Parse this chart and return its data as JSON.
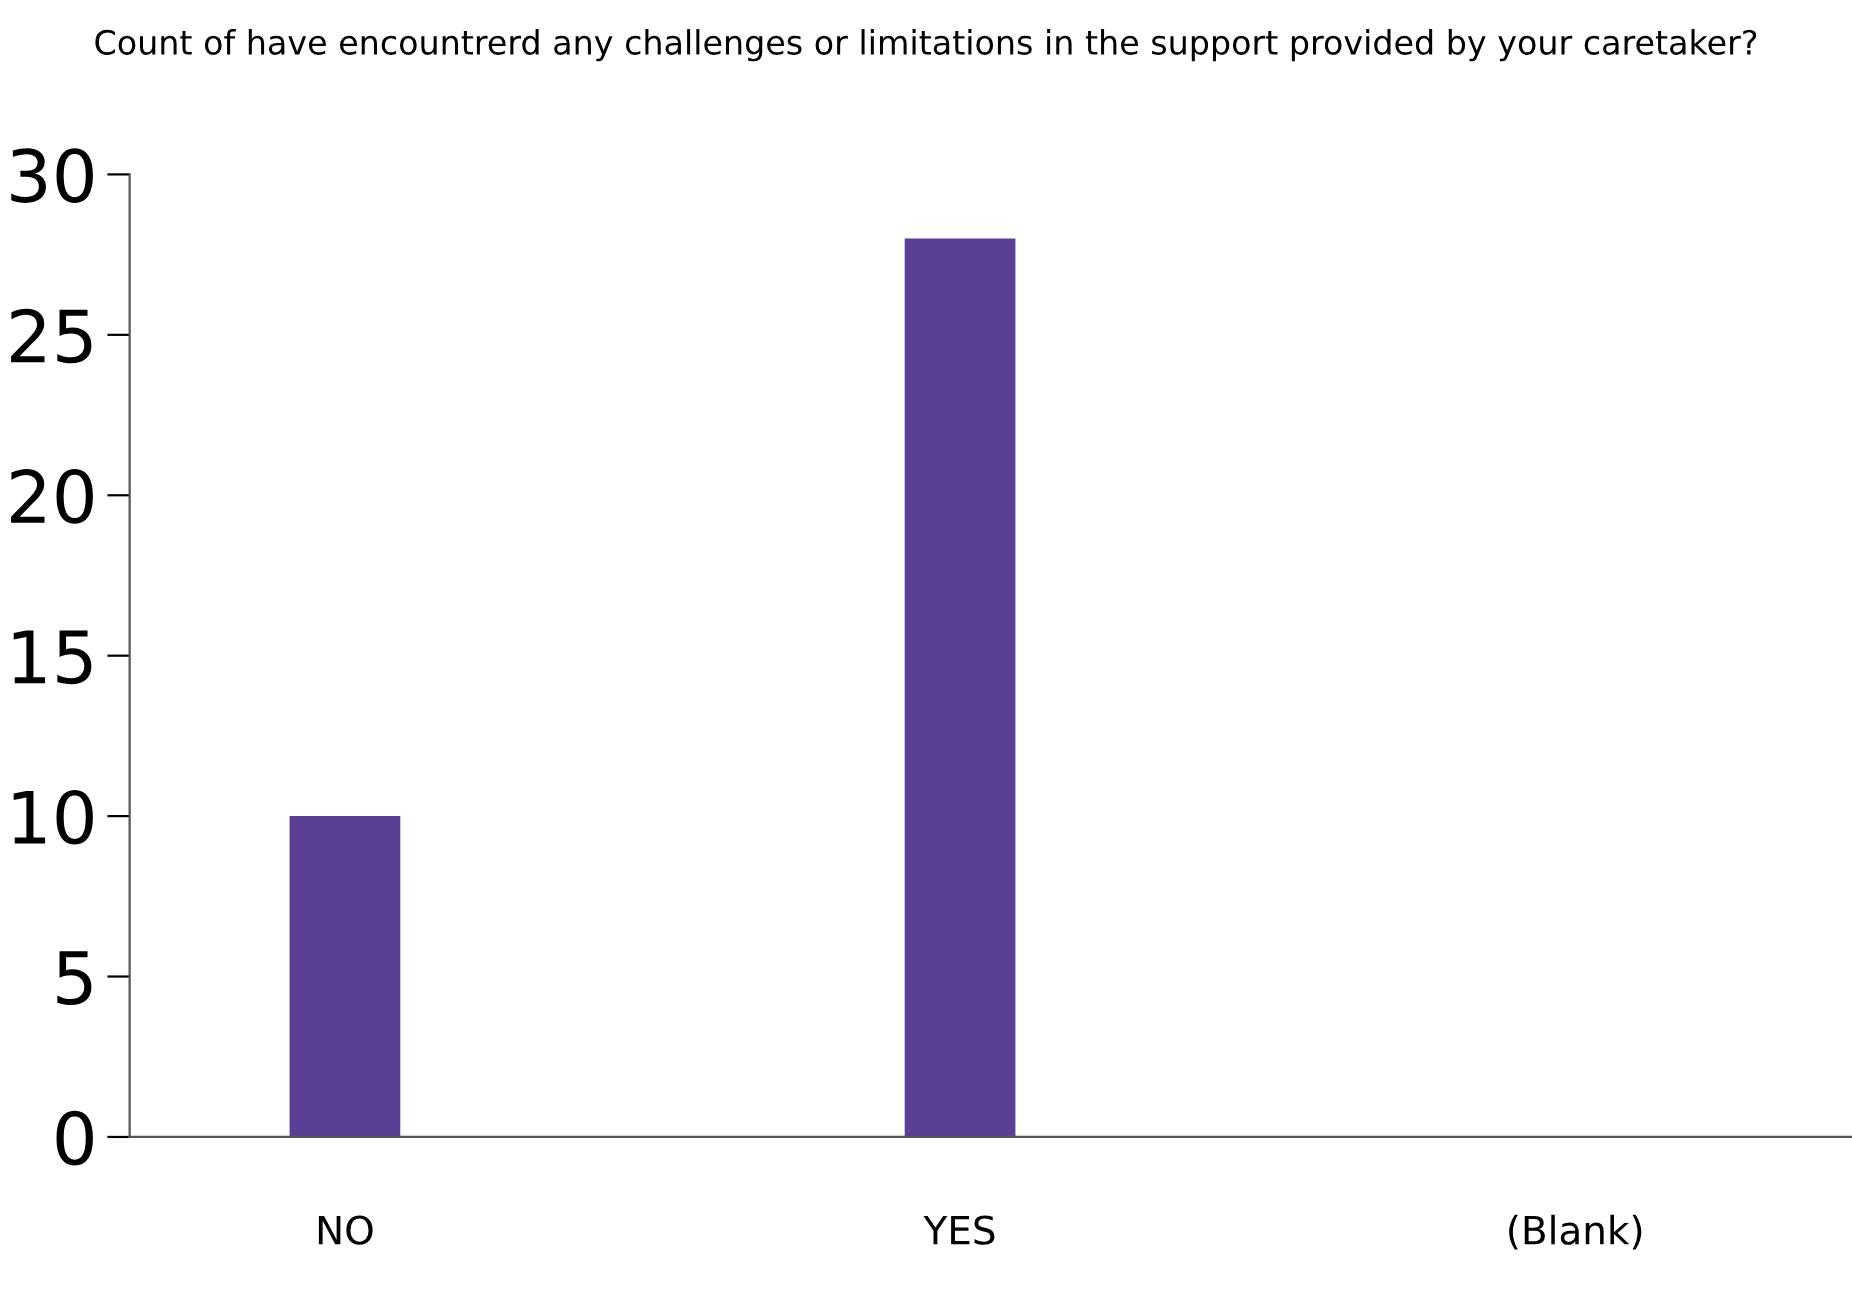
{
  "chart_data": {
    "type": "bar",
    "title": "Count of have encountrerd any challenges or limitations in the support provided by your caretaker?",
    "categories": [
      "NO",
      "YES",
      "(Blank)"
    ],
    "values": [
      10,
      28,
      0
    ],
    "color": "#5b3f94",
    "ylim": [
      0,
      30
    ],
    "yticks": [
      0,
      5,
      10,
      15,
      20,
      25,
      30
    ],
    "grid": false,
    "legend": false
  }
}
